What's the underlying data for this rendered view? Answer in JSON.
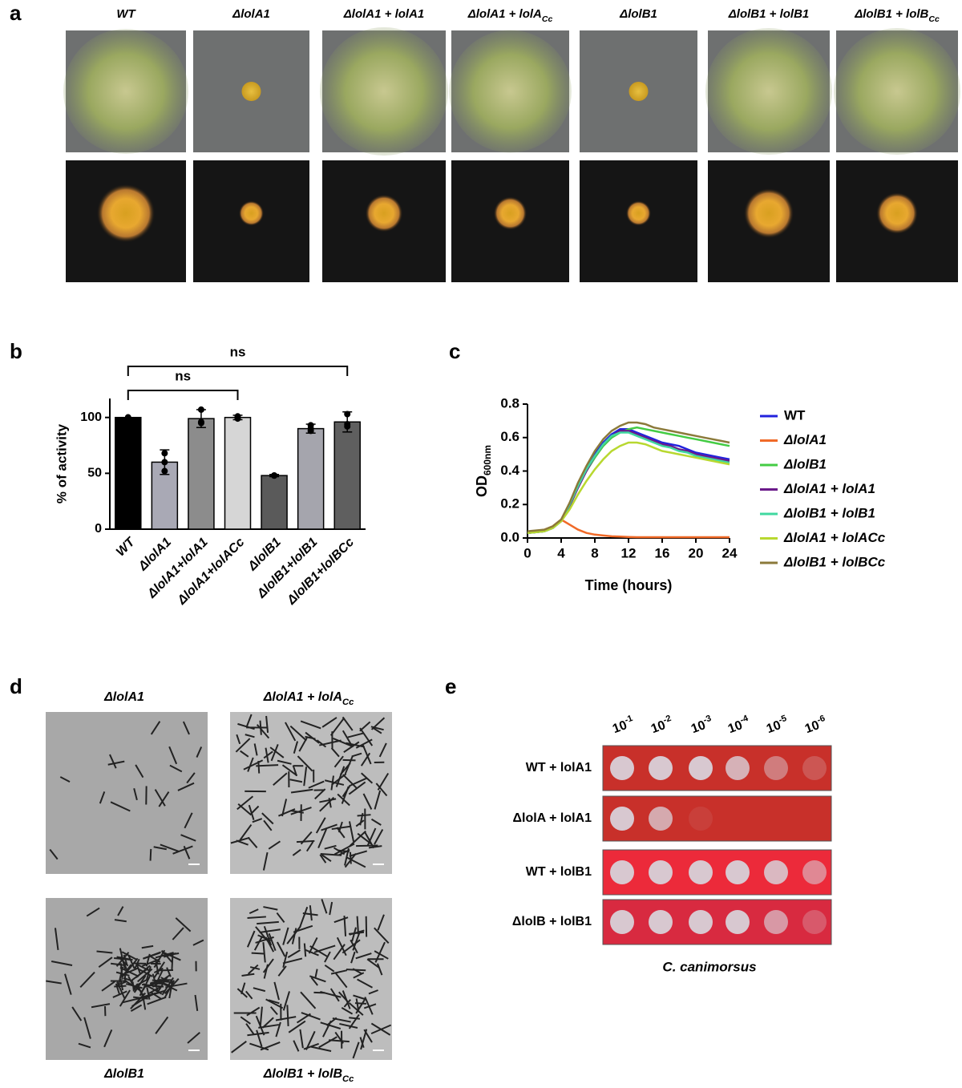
{
  "panel_letters": [
    "a",
    "b",
    "c",
    "d",
    "e"
  ],
  "panel_a": {
    "columns": [
      {
        "text": "WT"
      },
      {
        "text": "ΔlolA1"
      },
      {
        "text": "ΔlolA1 + lolA1"
      },
      {
        "text": "ΔlolA1 + lolA",
        "sub": "Cc"
      },
      {
        "text": "ΔlolB1"
      },
      {
        "text": "ΔlolB1 + lolB1"
      },
      {
        "text": "ΔlolB1 + lolB",
        "sub": "Cc"
      }
    ]
  },
  "chart_data": [
    {
      "type": "bar",
      "ylabel": "% of activity",
      "categories": [
        "WT",
        "ΔlolA1",
        "ΔlolA1+lolA1",
        "ΔlolA1+lolACc",
        "ΔlolB1",
        "ΔlolB1+lolB1",
        "ΔlolB1+lolBCc"
      ],
      "values": [
        100,
        60,
        99,
        100,
        48,
        90,
        96
      ],
      "errors": [
        0,
        11,
        8,
        2,
        1,
        4,
        9
      ],
      "points": [
        [
          100,
          100,
          100
        ],
        [
          68,
          52,
          60
        ],
        [
          107,
          95,
          96
        ],
        [
          101,
          100,
          99
        ],
        [
          48,
          48,
          48
        ],
        [
          93,
          88,
          90
        ],
        [
          103,
          94,
          92
        ]
      ],
      "colors": [
        "#000000",
        "#a9a9b5",
        "#8c8c8c",
        "#d6d6d6",
        "#5a5a5a",
        "#a5a5ad",
        "#5f5f5f"
      ],
      "ylim": [
        0,
        117
      ],
      "yticks": [
        0,
        50,
        100
      ],
      "annotations": [
        "ns",
        "ns"
      ]
    },
    {
      "type": "line",
      "ylabel": "OD",
      "ylabel_sub": "600nm",
      "xlabel": "Time (hours)",
      "x": [
        0,
        1,
        2,
        3,
        4,
        5,
        6,
        7,
        8,
        9,
        10,
        11,
        12,
        13,
        14,
        15,
        16,
        17,
        18,
        19,
        20,
        21,
        22,
        23,
        24
      ],
      "xlim": [
        0,
        24
      ],
      "xticks": [
        0,
        4,
        8,
        12,
        16,
        20,
        24
      ],
      "ylim": [
        0,
        0.8
      ],
      "yticks": [
        {
          "value": 0,
          "label": "0.0"
        },
        {
          "value": 0.2,
          "label": "0.2"
        },
        {
          "value": 0.4,
          "label": "0.4"
        },
        {
          "value": 0.6,
          "label": "0.6"
        },
        {
          "value": 0.8,
          "label": "0.8"
        }
      ],
      "series": [
        {
          "name": "WT",
          "color": "#2222dd",
          "values": [
            0.03,
            0.035,
            0.04,
            0.06,
            0.1,
            0.2,
            0.32,
            0.42,
            0.5,
            0.57,
            0.62,
            0.65,
            0.65,
            0.63,
            0.61,
            0.59,
            0.57,
            0.56,
            0.55,
            0.53,
            0.51,
            0.5,
            0.49,
            0.48,
            0.47
          ]
        },
        {
          "name": "ΔlolA1",
          "color": "#f06a28",
          "values": [
            0.03,
            0.04,
            0.05,
            0.07,
            0.11,
            0.08,
            0.05,
            0.03,
            0.02,
            0.015,
            0.01,
            0.008,
            0.006,
            0.005,
            0.005,
            0.005,
            0.005,
            0.005,
            0.005,
            0.005,
            0.005,
            0.005,
            0.005,
            0.005,
            0.005
          ]
        },
        {
          "name": "ΔlolB1",
          "color": "#44cc44",
          "values": [
            0.03,
            0.035,
            0.04,
            0.06,
            0.1,
            0.2,
            0.31,
            0.4,
            0.48,
            0.55,
            0.6,
            0.63,
            0.65,
            0.66,
            0.65,
            0.64,
            0.63,
            0.62,
            0.61,
            0.6,
            0.59,
            0.58,
            0.57,
            0.56,
            0.55
          ]
        },
        {
          "name": "ΔlolA1 + lolA1",
          "color": "#6a1a8a",
          "values": [
            0.03,
            0.035,
            0.04,
            0.06,
            0.1,
            0.19,
            0.3,
            0.4,
            0.49,
            0.56,
            0.61,
            0.64,
            0.64,
            0.62,
            0.6,
            0.58,
            0.56,
            0.55,
            0.53,
            0.52,
            0.5,
            0.49,
            0.48,
            0.47,
            0.46
          ]
        },
        {
          "name": "ΔlolB1 + lolB1",
          "color": "#40d8a0",
          "values": [
            0.03,
            0.035,
            0.04,
            0.06,
            0.1,
            0.2,
            0.31,
            0.41,
            0.49,
            0.56,
            0.61,
            0.63,
            0.63,
            0.61,
            0.59,
            0.57,
            0.55,
            0.54,
            0.52,
            0.51,
            0.49,
            0.48,
            0.47,
            0.46,
            0.45
          ]
        },
        {
          "name": "ΔlolA1 + lolACc",
          "color": "#b8d830",
          "values": [
            0.03,
            0.035,
            0.04,
            0.06,
            0.1,
            0.17,
            0.26,
            0.34,
            0.41,
            0.47,
            0.52,
            0.55,
            0.57,
            0.57,
            0.56,
            0.54,
            0.52,
            0.51,
            0.5,
            0.49,
            0.48,
            0.47,
            0.46,
            0.45,
            0.44
          ]
        },
        {
          "name": "ΔlolB1 + lolBCc",
          "color": "#8b7a3a",
          "values": [
            0.04,
            0.045,
            0.05,
            0.07,
            0.11,
            0.21,
            0.33,
            0.43,
            0.52,
            0.59,
            0.64,
            0.67,
            0.69,
            0.69,
            0.68,
            0.66,
            0.65,
            0.64,
            0.63,
            0.62,
            0.61,
            0.6,
            0.59,
            0.58,
            0.57
          ]
        }
      ]
    }
  ],
  "panel_d": {
    "top": [
      {
        "text": "ΔlolA1"
      },
      {
        "text": "ΔlolA1 + lolA",
        "sub": "Cc"
      }
    ],
    "bottom": [
      {
        "text": "ΔlolB1"
      },
      {
        "text": "ΔlolB1 + lolB",
        "sub": "Cc"
      }
    ]
  },
  "panel_e": {
    "dilutions": [
      {
        "base": "10",
        "exp": "-1"
      },
      {
        "base": "10",
        "exp": "-2"
      },
      {
        "base": "10",
        "exp": "-3"
      },
      {
        "base": "10",
        "exp": "-4"
      },
      {
        "base": "10",
        "exp": "-5"
      },
      {
        "base": "10",
        "exp": "-6"
      }
    ],
    "rows": [
      "WT + lolA1",
      "ΔlolA + lolA1",
      "WT + lolB1",
      "ΔlolB + lolB1"
    ],
    "caption": "C. canimorsus"
  }
}
